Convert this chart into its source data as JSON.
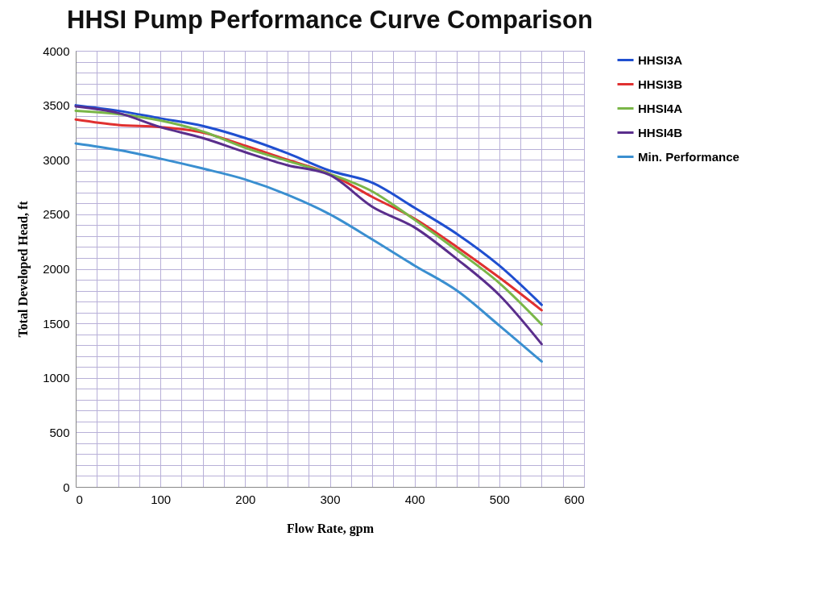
{
  "chart_data": {
    "type": "line",
    "title": "HHSI Pump Performance Curve Comparison",
    "xlabel": "Flow Rate, gpm",
    "ylabel": "Total Developed Head, ft",
    "x": [
      0,
      50,
      100,
      150,
      200,
      250,
      300,
      350,
      400,
      450,
      500,
      550
    ],
    "series": [
      {
        "name": "HHSI3A",
        "color": "#1f4fd0",
        "values": [
          3500,
          3450,
          3380,
          3310,
          3200,
          3060,
          2900,
          2790,
          2560,
          2320,
          2030,
          1670
        ]
      },
      {
        "name": "HHSI3B",
        "color": "#e03030",
        "values": [
          3370,
          3320,
          3300,
          3250,
          3130,
          3000,
          2870,
          2660,
          2460,
          2200,
          1920,
          1620
        ]
      },
      {
        "name": "HHSI4A",
        "color": "#7ab648",
        "values": [
          3450,
          3420,
          3360,
          3260,
          3110,
          2990,
          2870,
          2710,
          2450,
          2170,
          1870,
          1490
        ]
      },
      {
        "name": "HHSI4B",
        "color": "#5a2e8c",
        "values": [
          3490,
          3430,
          3300,
          3200,
          3070,
          2950,
          2860,
          2570,
          2380,
          2090,
          1760,
          1310
        ]
      },
      {
        "name": "Min. Performance",
        "color": "#3a8fd0",
        "values": [
          3150,
          3090,
          3010,
          2920,
          2820,
          2680,
          2500,
          2270,
          2030,
          1800,
          1480,
          1150
        ]
      }
    ],
    "xlim": [
      0,
      600
    ],
    "xticks": [
      0,
      {
        "value": 25,
        "label": null
      },
      {
        "value": 50,
        "label": null
      },
      {
        "value": 75,
        "label": null
      },
      100,
      {
        "value": 125,
        "label": null
      },
      {
        "value": 150,
        "label": null
      },
      {
        "value": 175,
        "label": null
      },
      200,
      {
        "value": 225,
        "label": null
      },
      {
        "value": 250,
        "label": null
      },
      {
        "value": 275,
        "label": null
      },
      300,
      {
        "value": 325,
        "label": null
      },
      {
        "value": 350,
        "label": null
      },
      {
        "value": 375,
        "label": null
      },
      400,
      {
        "value": 425,
        "label": null
      },
      {
        "value": 450,
        "label": null
      },
      {
        "value": 475,
        "label": null
      },
      500,
      {
        "value": 525,
        "label": null
      },
      {
        "value": 550,
        "label": null
      },
      {
        "value": 575,
        "label": null
      },
      600
    ],
    "ylim": [
      0,
      4000
    ],
    "yticks": [
      0,
      {
        "value": 100,
        "label": null
      },
      {
        "value": 200,
        "label": null
      },
      {
        "value": 300,
        "label": null
      },
      {
        "value": 400,
        "label": null
      },
      500,
      {
        "value": 600,
        "label": null
      },
      {
        "value": 700,
        "label": null
      },
      {
        "value": 800,
        "label": null
      },
      {
        "value": 900,
        "label": null
      },
      1000,
      {
        "value": 1100,
        "label": null
      },
      {
        "value": 1200,
        "label": null
      },
      {
        "value": 1300,
        "label": null
      },
      {
        "value": 1400,
        "label": null
      },
      1500,
      {
        "value": 1600,
        "label": null
      },
      {
        "value": 1700,
        "label": null
      },
      {
        "value": 1800,
        "label": null
      },
      {
        "value": 1900,
        "label": null
      },
      2000,
      {
        "value": 2100,
        "label": null
      },
      {
        "value": 2200,
        "label": null
      },
      {
        "value": 2300,
        "label": null
      },
      {
        "value": 2400,
        "label": null
      },
      2500,
      {
        "value": 2600,
        "label": null
      },
      {
        "value": 2700,
        "label": null
      },
      {
        "value": 2800,
        "label": null
      },
      {
        "value": 2900,
        "label": null
      },
      3000,
      {
        "value": 3100,
        "label": null
      },
      {
        "value": 3200,
        "label": null
      },
      {
        "value": 3300,
        "label": null
      },
      {
        "value": 3400,
        "label": null
      },
      3500,
      {
        "value": 3600,
        "label": null
      },
      {
        "value": 3700,
        "label": null
      },
      {
        "value": 3800,
        "label": null
      },
      {
        "value": 3900,
        "label": null
      },
      4000
    ],
    "grid": true,
    "legend": "right",
    "marker": "none",
    "line_style": "solid"
  }
}
